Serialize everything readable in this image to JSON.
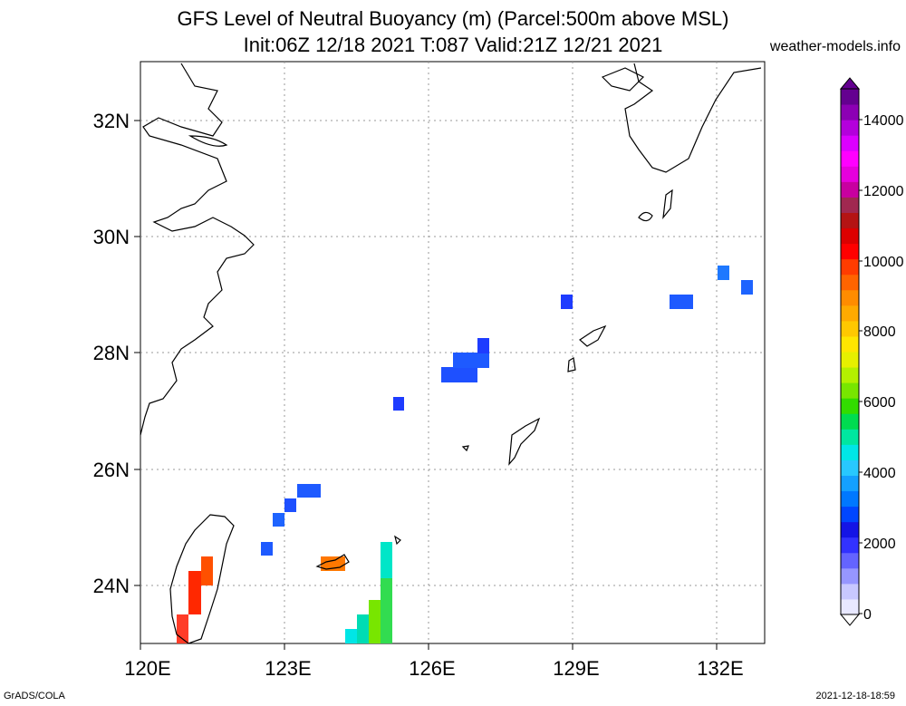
{
  "title": {
    "line1": "GFS Level of Neutral Buoyancy (m) (Parcel:500m above MSL)",
    "line2": "Init:06Z 12/18 2021 T:087 Valid:21Z 12/21 2021"
  },
  "site": "weather-models.info",
  "footer": {
    "left": "GrADS/COLA",
    "right": "2021-12-18-18:59"
  },
  "map": {
    "lon_range": [
      120,
      133
    ],
    "lat_range": [
      23,
      33
    ],
    "lon_ticks": [
      "120E",
      "123E",
      "126E",
      "129E",
      "132E"
    ],
    "lat_ticks": [
      "32N",
      "30N",
      "28N",
      "26N",
      "24N"
    ],
    "grid": "dotted"
  },
  "colorbar": {
    "labels": [
      "14000",
      "12000",
      "10000",
      "8000",
      "6000",
      "4000",
      "2000",
      "0"
    ],
    "colors": [
      "#e8e8ff",
      "#c8c8ff",
      "#9696ff",
      "#6464ff",
      "#3232ff",
      "#1414e6",
      "#0046ff",
      "#0078ff",
      "#14a0ff",
      "#28c8ff",
      "#00e6e6",
      "#00e6a0",
      "#00dc50",
      "#32dc00",
      "#78e600",
      "#b4f000",
      "#e6f000",
      "#ffe600",
      "#ffc800",
      "#ffaa00",
      "#ff8c00",
      "#ff6400",
      "#ff3c00",
      "#ff0000",
      "#dc0000",
      "#b41414",
      "#a02850",
      "#c800a0",
      "#e600dc",
      "#ff00ff",
      "#dc00ff",
      "#b400dc",
      "#8c00b4",
      "#640090"
    ]
  }
}
